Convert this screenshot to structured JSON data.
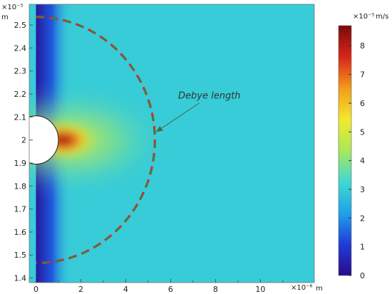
{
  "chart_data": {
    "type": "heatmap",
    "title": "",
    "x_axis": {
      "unit_label": "m",
      "exponent_label": "×10⁻⁶",
      "range": [
        -0.3,
        12.4
      ],
      "ticks": [
        {
          "value": 0,
          "label": "0"
        },
        {
          "value": 2,
          "label": "2"
        },
        {
          "value": 4,
          "label": "4"
        },
        {
          "value": 6,
          "label": "6"
        },
        {
          "value": 8,
          "label": "8"
        },
        {
          "value": 10,
          "label": "10"
        }
      ]
    },
    "y_axis": {
      "unit_label": "m",
      "exponent_label": "×10⁻⁵",
      "range": [
        1.38,
        2.59
      ],
      "ticks": [
        {
          "value": 1.4,
          "label": "1.4"
        },
        {
          "value": 1.5,
          "label": "1.5"
        },
        {
          "value": 1.6,
          "label": "1.6"
        },
        {
          "value": 1.7,
          "label": "1.7"
        },
        {
          "value": 1.8,
          "label": "1.8"
        },
        {
          "value": 1.9,
          "label": "1.9"
        },
        {
          "value": 2.0,
          "label": "2"
        },
        {
          "value": 2.1,
          "label": "2.1"
        },
        {
          "value": 2.2,
          "label": "2.2"
        },
        {
          "value": 2.3,
          "label": "2.3"
        },
        {
          "value": 2.4,
          "label": "2.4"
        },
        {
          "value": 2.5,
          "label": "2.5"
        }
      ]
    },
    "colorbar": {
      "unit_label": "m/s",
      "exponent_label": "×10⁻⁵",
      "range": [
        0,
        8.7
      ],
      "ticks": [
        {
          "value": 0,
          "label": "0"
        },
        {
          "value": 1,
          "label": "1"
        },
        {
          "value": 2,
          "label": "2"
        },
        {
          "value": 3,
          "label": "3"
        },
        {
          "value": 4,
          "label": "4"
        },
        {
          "value": 5,
          "label": "5"
        },
        {
          "value": 6,
          "label": "6"
        },
        {
          "value": 7,
          "label": "7"
        },
        {
          "value": 8,
          "label": "8"
        }
      ],
      "colormap": "rainbow",
      "stops": [
        "#2a0a8a",
        "#1f3cd8",
        "#1fa2ea",
        "#3fd9d2",
        "#a9e85a",
        "#f2ea2a",
        "#f39a1a",
        "#d8251a",
        "#7a0a0a"
      ]
    },
    "field": {
      "description_values": {
        "left_wall_value": 0.3,
        "background_value": 3.0,
        "max_value": 8.7
      },
      "sphere": {
        "center_x": 0,
        "center_y": 2.0,
        "radius_x": 1.0,
        "radius_y": 0.105
      },
      "hotspot": {
        "x": 1.2,
        "y": 2.0,
        "value": 8.7
      }
    },
    "debye_circle": {
      "center_x": 0,
      "center_y": 2.0,
      "radius_x": 5.3,
      "radius_y": 0.535,
      "dash_colors": [
        "#c8323a",
        "#2f8a35"
      ]
    },
    "annotation": {
      "text": "Debye length",
      "x": 6.4,
      "y": 2.18,
      "arrow_to_x": 5.35,
      "arrow_to_y": 2.035
    }
  }
}
